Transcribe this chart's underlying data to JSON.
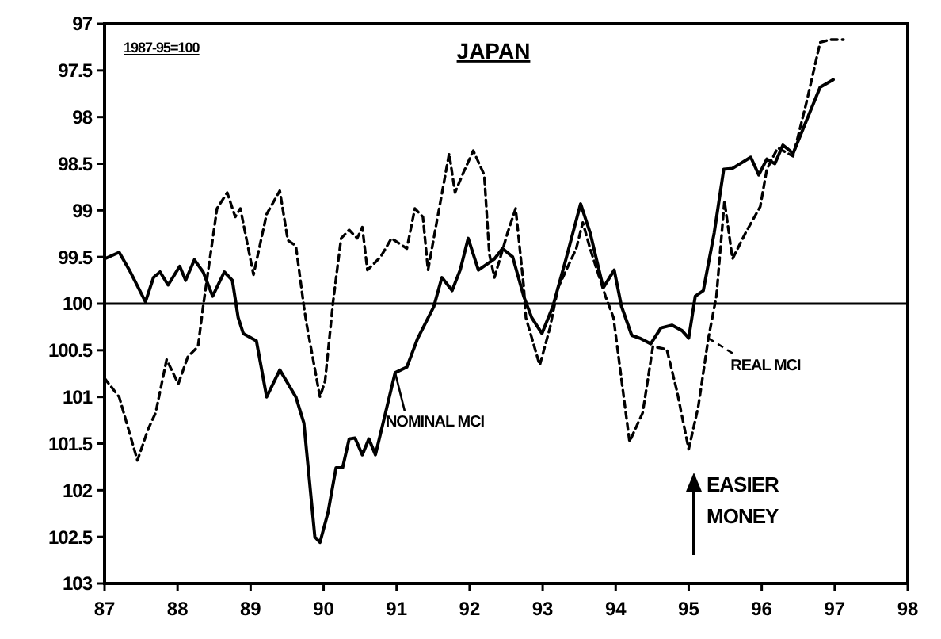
{
  "chart_data": {
    "type": "line",
    "title": "JAPAN",
    "subtitle": "1987-95=100",
    "grid": false,
    "marker": "none",
    "xlim": [
      87,
      98
    ],
    "xticks": [
      87,
      88,
      89,
      90,
      91,
      92,
      93,
      94,
      95,
      96,
      97,
      98
    ],
    "ylim": [
      103,
      97
    ],
    "yticks": [
      97,
      97.5,
      98,
      98.5,
      99,
      99.5,
      100,
      100.5,
      101,
      101.5,
      102,
      102.5,
      103
    ],
    "ref_lines": [
      {
        "axis": "y",
        "value": 100,
        "color": "#000000",
        "line_style": "solid"
      }
    ],
    "annotations": [
      "EASIER MONEY"
    ],
    "series": [
      {
        "name": "NOMINAL MCI",
        "color": "#000000",
        "line_style": "solid",
        "x": [
          87.0,
          87.2,
          87.34,
          87.56,
          87.67,
          87.76,
          87.87,
          88.03,
          88.11,
          88.23,
          88.35,
          88.48,
          88.64,
          88.75,
          88.83,
          88.9,
          89.08,
          89.22,
          89.4,
          89.62,
          89.73,
          89.88,
          89.95,
          90.06,
          90.17,
          90.26,
          90.35,
          90.43,
          90.53,
          90.62,
          90.71,
          90.98,
          91.14,
          91.29,
          91.51,
          91.62,
          91.76,
          91.87,
          91.98,
          92.12,
          92.34,
          92.45,
          92.59,
          92.74,
          92.85,
          92.99,
          93.14,
          93.32,
          93.52,
          93.65,
          93.83,
          93.98,
          94.08,
          94.22,
          94.33,
          94.48,
          94.62,
          94.77,
          94.91,
          95.0,
          95.09,
          95.2,
          95.35,
          95.48,
          95.6,
          95.85,
          95.96,
          96.07,
          96.18,
          96.29,
          96.43,
          96.58,
          96.8,
          96.98
        ],
        "values": [
          99.52,
          99.45,
          99.64,
          99.98,
          99.72,
          99.66,
          99.8,
          99.6,
          99.75,
          99.53,
          99.66,
          99.92,
          99.66,
          99.75,
          100.15,
          100.32,
          100.4,
          101.0,
          100.71,
          101.0,
          101.28,
          102.5,
          102.56,
          102.24,
          101.76,
          101.76,
          101.45,
          101.44,
          101.62,
          101.45,
          101.62,
          100.74,
          100.68,
          100.37,
          100.03,
          99.72,
          99.86,
          99.64,
          99.3,
          99.64,
          99.52,
          99.41,
          99.5,
          99.92,
          100.15,
          100.32,
          100.03,
          99.52,
          98.93,
          99.24,
          99.83,
          99.64,
          100.03,
          100.34,
          100.37,
          100.43,
          100.26,
          100.23,
          100.29,
          100.37,
          99.92,
          99.86,
          99.24,
          98.56,
          98.55,
          98.43,
          98.62,
          98.45,
          98.5,
          98.3,
          98.39,
          98.1,
          97.68,
          97.6
        ]
      },
      {
        "name": "REAL MCI",
        "color": "#000000",
        "line_style": "dashed",
        "x": [
          87.0,
          87.2,
          87.45,
          87.6,
          87.7,
          87.85,
          88.01,
          88.14,
          88.28,
          88.35,
          88.54,
          88.68,
          88.79,
          88.86,
          89.04,
          89.22,
          89.4,
          89.51,
          89.62,
          89.73,
          89.77,
          89.95,
          90.02,
          90.13,
          90.24,
          90.35,
          90.46,
          90.53,
          90.6,
          90.78,
          90.93,
          91.14,
          91.25,
          91.36,
          91.43,
          91.72,
          91.8,
          91.9,
          92.05,
          92.2,
          92.27,
          92.34,
          92.52,
          92.63,
          92.74,
          92.77,
          92.96,
          93.1,
          93.21,
          93.46,
          93.55,
          93.65,
          93.86,
          93.97,
          94.19,
          94.37,
          94.51,
          94.7,
          94.84,
          95.0,
          95.13,
          95.27,
          95.38,
          95.49,
          95.6,
          95.78,
          95.98,
          96.07,
          96.22,
          96.43,
          96.62,
          96.8,
          96.94,
          97.12
        ],
        "values": [
          100.8,
          101.0,
          101.68,
          101.34,
          101.17,
          100.6,
          100.86,
          100.57,
          100.46,
          100.03,
          98.98,
          98.81,
          99.07,
          98.98,
          99.69,
          99.04,
          98.79,
          99.32,
          99.38,
          100.03,
          100.23,
          101.0,
          100.83,
          99.98,
          99.3,
          99.21,
          99.3,
          99.18,
          99.64,
          99.5,
          99.3,
          99.41,
          98.98,
          99.07,
          99.64,
          98.39,
          98.81,
          98.62,
          98.36,
          98.62,
          99.47,
          99.72,
          99.24,
          98.98,
          99.81,
          100.15,
          100.66,
          100.26,
          99.83,
          99.41,
          99.13,
          99.41,
          99.92,
          100.15,
          101.48,
          101.17,
          100.46,
          100.49,
          100.94,
          101.56,
          101.11,
          100.37,
          99.92,
          98.9,
          99.52,
          99.24,
          98.96,
          98.56,
          98.33,
          98.42,
          97.82,
          97.2,
          97.17,
          97.17
        ]
      }
    ]
  }
}
